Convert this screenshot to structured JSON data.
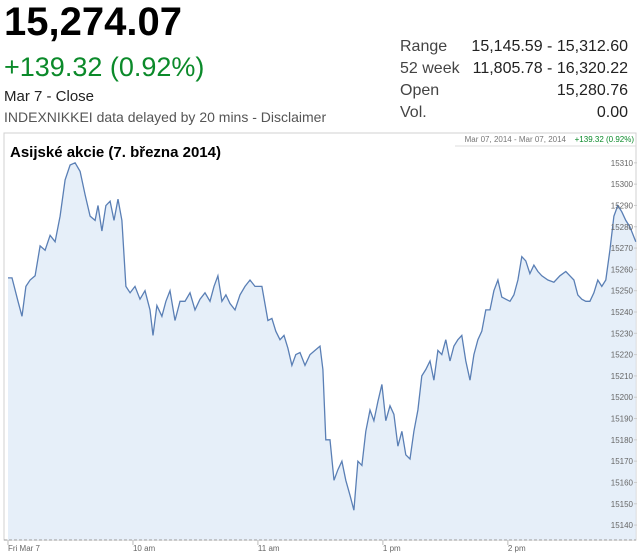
{
  "quote": {
    "price": "15,274.07",
    "change": "+139.32 (0.92%)",
    "date": "Mar 7 - Close",
    "source": "INDEXNIKKEI data delayed by 20 mins -",
    "disclaimer": "Disclaimer"
  },
  "stats": [
    {
      "label": "Range",
      "value": "15,145.59 - 15,312.60"
    },
    {
      "label": "52 week",
      "value": "11,805.78 - 16,320.22"
    },
    {
      "label": "Open",
      "value": "15,280.76"
    },
    {
      "label": "Vol.",
      "value": "0.00"
    }
  ],
  "chart_data": {
    "type": "area",
    "title": "Asijské akcie (7. března 2014)",
    "range_label": "Mar 07, 2014 - Mar 07, 2014",
    "change_label": "+139.32 (0.92%)",
    "x": [
      0,
      1.9,
      4.8,
      6.7,
      8.6,
      10.6,
      13,
      15.4,
      17.8,
      20.2,
      22.6,
      25,
      27.4,
      29.8,
      32.2,
      34.6,
      37,
      39.4,
      41.8,
      43.2,
      45.1,
      47,
      49,
      50.9,
      52.8,
      54.7,
      56.6,
      58.6,
      61,
      63.4,
      65.8,
      68.2,
      69.6,
      71.5,
      73.9,
      75.8,
      77.8,
      80.2,
      82.6,
      85,
      87.4,
      89.8,
      92.2,
      94.6,
      97,
      98.9,
      100.8,
      102.7,
      104.6,
      106.6,
      109,
      111.4,
      113.8,
      116.2,
      118.6,
      121.9,
      124.8,
      126.7,
      128.6,
      130.6,
      132.5,
      134.4,
      136.3,
      138.2,
      140.2,
      142.6,
      145,
      147.4,
      149.8,
      151.2,
      152.6,
      154.6,
      156.5,
      158.4,
      160.3,
      162.2,
      164.2,
      166.1,
      168,
      169.9,
      171.8,
      173.8,
      175.7,
      177.6,
      179.5,
      181.4,
      183.4,
      185.3,
      187.2,
      189.1,
      191,
      193,
      194.9,
      196.8,
      198.7,
      200.6,
      202.6,
      204.5,
      206.4,
      208.3,
      210.2,
      212.2,
      214.1,
      216,
      217.9,
      219.8,
      221.8,
      223.7,
      225.6,
      227.5,
      229.4,
      231.4,
      233.3,
      235.2,
      237.1,
      239,
      241,
      242.9,
      244.8,
      246.7,
      248.6,
      250.6,
      252.5,
      254.4,
      256.3,
      259.2,
      262.1,
      265,
      267.8,
      269.8,
      271.7,
      273.6,
      275.5,
      277.4,
      279.4,
      281.3,
      283.2,
      285.1,
      287,
      289,
      290.9,
      292.8,
      294.7,
      296.6,
      298.6,
      301.4
    ],
    "series": [
      {
        "name": "INDEXNIKKEI",
        "color": "#5a7fb5",
        "fill": "#e6eff9",
        "values": [
          15256,
          15256,
          15245,
          15238,
          15252,
          15255,
          15257,
          15271,
          15269,
          15276,
          15273,
          15285,
          15302,
          15309,
          15310,
          15306,
          15295,
          15285,
          15283,
          15290,
          15278,
          15290,
          15292,
          15283,
          15293,
          15283,
          15252,
          15249,
          15252,
          15246,
          15250,
          15241,
          15229,
          15243,
          15238,
          15245,
          15250,
          15236,
          15245,
          15245,
          15249,
          15241,
          15246,
          15249,
          15245,
          15252,
          15257,
          15245,
          15248,
          15244,
          15241,
          15248,
          15252,
          15255,
          15252,
          15252,
          15236,
          15237,
          15231,
          15227,
          15229,
          15223,
          15215,
          15220,
          15221,
          15215,
          15220,
          15222,
          15224,
          15213,
          15180,
          15180,
          15161,
          15166,
          15170,
          15161,
          15154,
          15147,
          15170,
          15168,
          15184,
          15194,
          15189,
          15198,
          15206,
          15189,
          15196,
          15192,
          15177,
          15184,
          15173,
          15171,
          15184,
          15194,
          15210,
          15213,
          15217,
          15208,
          15222,
          15220,
          15227,
          15217,
          15224,
          15227,
          15229,
          15217,
          15208,
          15220,
          15227,
          15231,
          15241,
          15241,
          15250,
          15255,
          15247,
          15246,
          15245,
          15248,
          15255,
          15266,
          15264,
          15258,
          15262,
          15259,
          15257,
          15255,
          15254,
          15257,
          15259,
          15257,
          15255,
          15248,
          15246,
          15245,
          15245,
          15249,
          15255,
          15252,
          15255,
          15269,
          15285,
          15290,
          15287,
          15283,
          15280,
          15273
        ]
      }
    ],
    "xlim": [
      0,
      302
    ],
    "ylim": [
      15133,
      15324
    ],
    "xticks": [
      {
        "value": 0,
        "label": "Fri Mar 7"
      },
      {
        "value": 60,
        "label": "10 am"
      },
      {
        "value": 120,
        "label": "11 am"
      },
      {
        "value": 180,
        "label": "1 pm"
      },
      {
        "value": 240,
        "label": "2 pm"
      }
    ],
    "yticks": [
      15140,
      15150,
      15160,
      15170,
      15180,
      15190,
      15200,
      15210,
      15220,
      15230,
      15240,
      15250,
      15260,
      15270,
      15280,
      15290,
      15300,
      15310
    ],
    "grid": false
  }
}
